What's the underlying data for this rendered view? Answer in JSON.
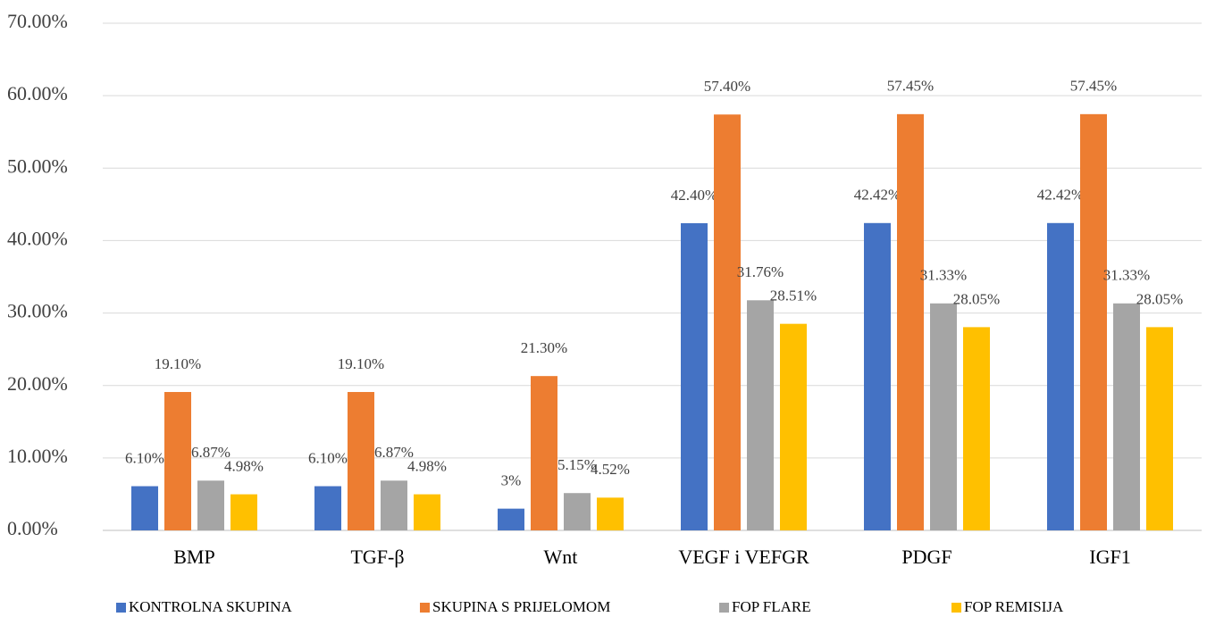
{
  "chart_data": {
    "type": "bar",
    "categories": [
      "BMP",
      "TGF-β",
      "Wnt",
      "VEGF i VEFGR",
      "PDGF",
      "IGF1"
    ],
    "series": [
      {
        "name": "KONTROLNA SKUPINA",
        "color": "#4472c4",
        "values": [
          6.1,
          6.1,
          3,
          42.4,
          42.42,
          42.42
        ],
        "value_labels": [
          "6.10%",
          "6.10%",
          "3%",
          "42.40%",
          "42.42%",
          "42.42%"
        ]
      },
      {
        "name": "SKUPINA S PRIJELOMOM",
        "color": "#ed7d31",
        "values": [
          19.1,
          19.1,
          21.3,
          57.4,
          57.45,
          57.45
        ],
        "value_labels": [
          "19.10%",
          "19.10%",
          "21.30%",
          "57.40%",
          "57.45%",
          "57.45%"
        ]
      },
      {
        "name": "FOP FLARE",
        "color": "#a5a5a5",
        "values": [
          6.87,
          6.87,
          5.15,
          31.76,
          31.33,
          31.33
        ],
        "value_labels": [
          "6.87%",
          "6.87%",
          "5.15%",
          "31.76%",
          "31.33%",
          "31.33%"
        ]
      },
      {
        "name": "FOP REMISIJA",
        "color": "#ffc000",
        "values": [
          4.98,
          4.98,
          4.52,
          28.51,
          28.05,
          28.05
        ],
        "value_labels": [
          "4.98%",
          "4.98%",
          "4.52%",
          "28.51%",
          "28.05%",
          "28.05%"
        ]
      }
    ],
    "ylim": [
      0,
      70
    ],
    "yticks": [
      {
        "value": 0,
        "label": "0.00%"
      },
      {
        "value": 10,
        "label": "10.00%"
      },
      {
        "value": 20,
        "label": "20.00%"
      },
      {
        "value": 30,
        "label": "30.00%"
      },
      {
        "value": 40,
        "label": "40.00%"
      },
      {
        "value": 50,
        "label": "50.00%"
      },
      {
        "value": 60,
        "label": "60.00%"
      },
      {
        "value": 70,
        "label": "70.00%"
      }
    ],
    "grid": true
  }
}
